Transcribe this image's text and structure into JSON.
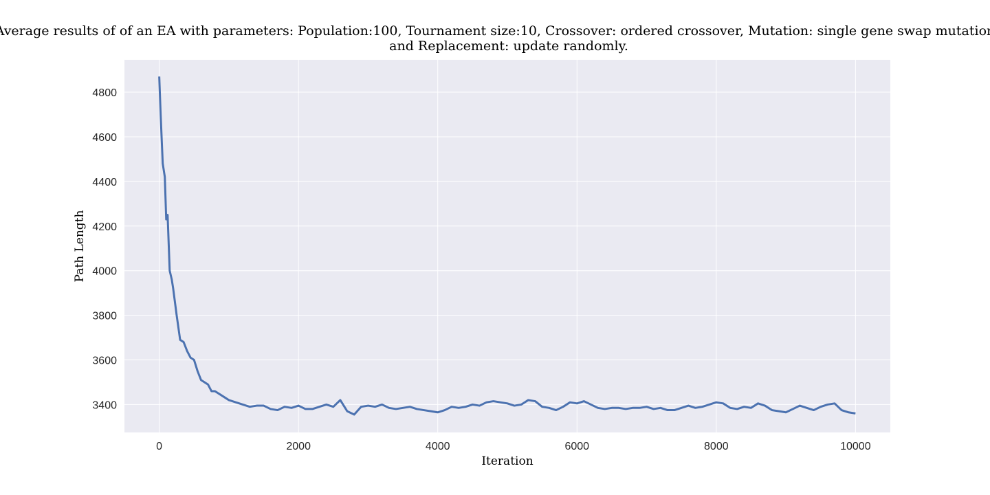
{
  "chart_data": {
    "type": "line",
    "title": [
      "Average results of of an EA with parameters: Population:100, Tournament size:10, Crossover: ordered crossover, Mutation: single gene swap mutation",
      "and Replacement: update randomly."
    ],
    "x_label": "Iteration",
    "y_label": "Path Length",
    "xlim": [
      -500,
      10500
    ],
    "ylim": [
      3275,
      4945
    ],
    "xticks": [
      0,
      2000,
      4000,
      6000,
      8000,
      10000
    ],
    "yticks": [
      3400,
      3600,
      3800,
      4000,
      4200,
      4400,
      4600,
      4800
    ],
    "grid": true,
    "background": "#eaeaf2",
    "x": [
      0,
      20,
      50,
      80,
      100,
      120,
      150,
      180,
      200,
      250,
      300,
      350,
      400,
      450,
      500,
      550,
      600,
      700,
      750,
      800,
      900,
      1000,
      1100,
      1200,
      1300,
      1400,
      1500,
      1600,
      1700,
      1800,
      1900,
      2000,
      2100,
      2200,
      2300,
      2400,
      2500,
      2600,
      2700,
      2800,
      2900,
      3000,
      3100,
      3200,
      3300,
      3400,
      3500,
      3600,
      3700,
      3800,
      3900,
      4000,
      4100,
      4200,
      4300,
      4400,
      4500,
      4600,
      4700,
      4800,
      4900,
      5000,
      5100,
      5200,
      5300,
      5400,
      5500,
      5600,
      5700,
      5800,
      5900,
      6000,
      6100,
      6200,
      6300,
      6400,
      6500,
      6600,
      6700,
      6800,
      6900,
      7000,
      7100,
      7200,
      7300,
      7400,
      7500,
      7600,
      7700,
      7800,
      7900,
      8000,
      8100,
      8200,
      8300,
      8400,
      8500,
      8600,
      8700,
      8800,
      8900,
      9000,
      9100,
      9200,
      9300,
      9400,
      9500,
      9600,
      9700,
      9800,
      9900,
      10000
    ],
    "series": [
      {
        "name": "Path Length",
        "color": "#4c72b0",
        "values": [
          4870,
          4700,
          4480,
          4420,
          4230,
          4250,
          4000,
          3960,
          3920,
          3800,
          3690,
          3680,
          3640,
          3610,
          3600,
          3550,
          3510,
          3490,
          3460,
          3460,
          3440,
          3420,
          3410,
          3400,
          3390,
          3395,
          3395,
          3380,
          3375,
          3390,
          3385,
          3395,
          3380,
          3380,
          3390,
          3400,
          3390,
          3420,
          3370,
          3355,
          3390,
          3395,
          3390,
          3400,
          3385,
          3380,
          3385,
          3390,
          3380,
          3375,
          3370,
          3365,
          3375,
          3390,
          3385,
          3390,
          3400,
          3395,
          3410,
          3415,
          3410,
          3405,
          3395,
          3400,
          3420,
          3415,
          3390,
          3385,
          3375,
          3390,
          3410,
          3405,
          3415,
          3400,
          3385,
          3380,
          3385,
          3385,
          3380,
          3385,
          3385,
          3390,
          3380,
          3385,
          3375,
          3375,
          3385,
          3395,
          3385,
          3390,
          3400,
          3410,
          3405,
          3385,
          3380,
          3390,
          3385,
          3405,
          3395,
          3375,
          3370,
          3365,
          3380,
          3395,
          3385,
          3375,
          3390,
          3400,
          3405,
          3375,
          3365,
          3360
        ]
      }
    ]
  }
}
